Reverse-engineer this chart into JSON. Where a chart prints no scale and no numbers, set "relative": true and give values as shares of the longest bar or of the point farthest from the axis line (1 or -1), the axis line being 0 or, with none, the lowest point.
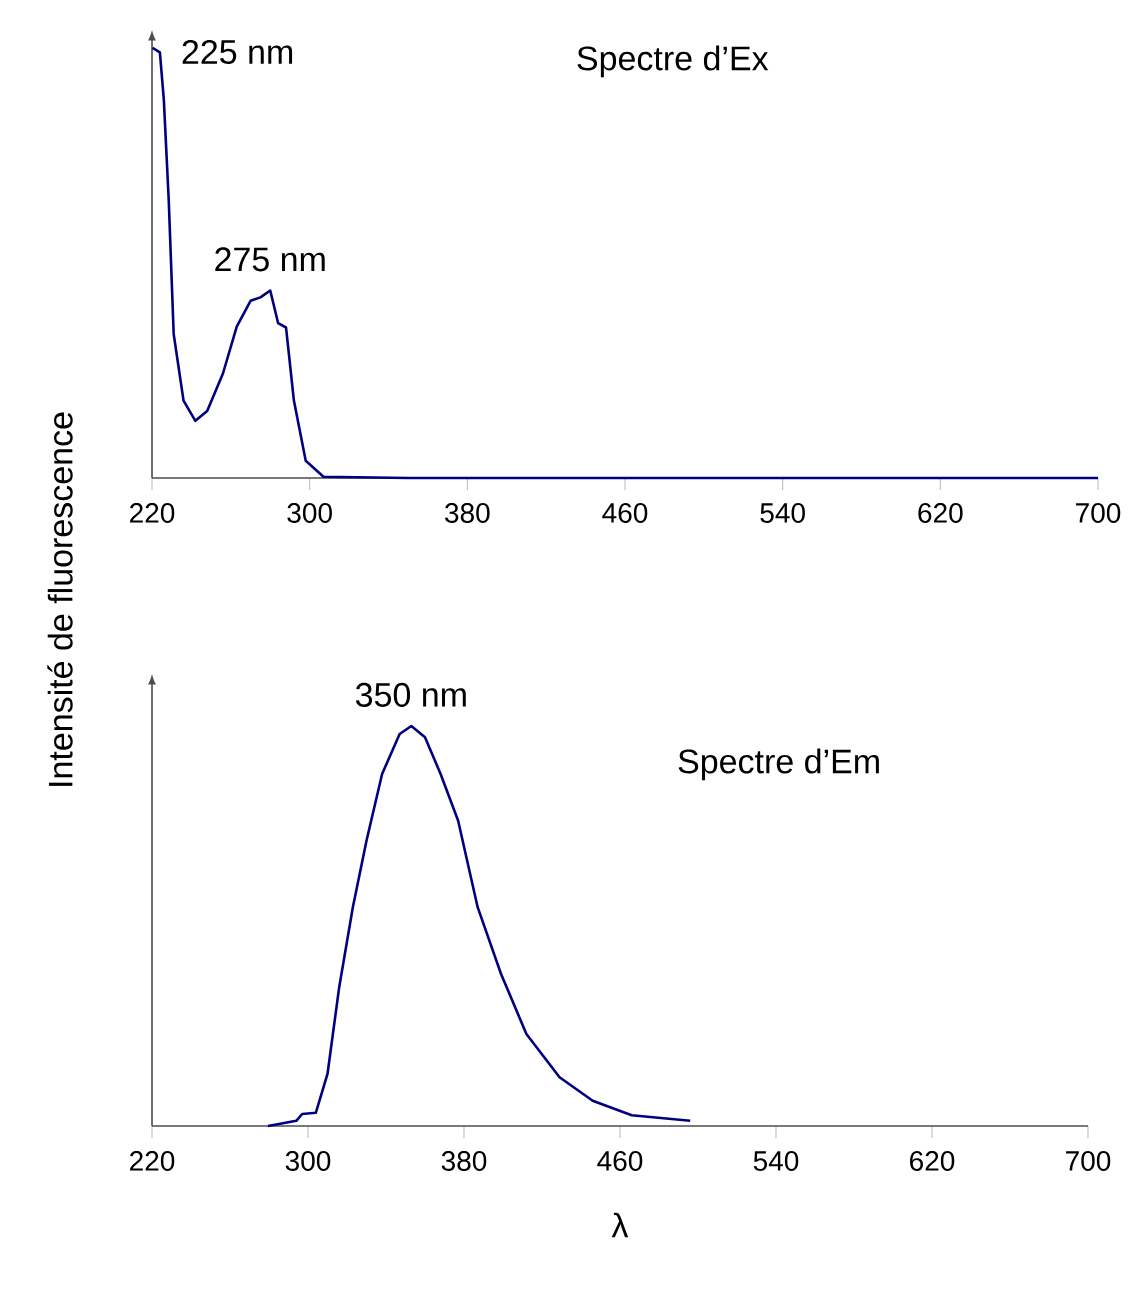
{
  "chart_data": [
    {
      "type": "line",
      "title": "Spectre d’Ex",
      "ylabel": "Intensité de fluorescence",
      "relative": true,
      "color": "#000080",
      "xlim": [
        220,
        700
      ],
      "xticks": [
        220,
        300,
        380,
        460,
        540,
        620,
        700
      ],
      "x": [
        220.3,
        224,
        226,
        228.5,
        231,
        236,
        242,
        248,
        256,
        263,
        270,
        275,
        280,
        284,
        288,
        292,
        298,
        307,
        350,
        400,
        450,
        500,
        550,
        600,
        650,
        700
      ],
      "values": [
        1.0,
        0.99,
        0.88,
        0.645,
        0.335,
        0.18,
        0.133,
        0.156,
        0.243,
        0.352,
        0.412,
        0.42,
        0.436,
        0.36,
        0.35,
        0.18,
        0.04,
        0.003,
        0,
        0,
        0,
        0,
        0,
        0,
        0,
        0
      ],
      "annotations": [
        {
          "text": "225 nm",
          "x": 225,
          "y": 1.0
        },
        {
          "text": "275 nm",
          "x": 280,
          "y": 0.436
        }
      ]
    },
    {
      "type": "line",
      "title": "Spectre d’Em",
      "xlabel": "λ",
      "relative": true,
      "color": "#000080",
      "xlim": [
        220,
        700
      ],
      "xticks": [
        220,
        300,
        380,
        460,
        540,
        620,
        700
      ],
      "x": [
        279.5,
        294,
        297,
        304,
        310,
        316,
        323,
        330,
        338,
        347,
        353,
        360,
        368,
        377,
        387,
        399,
        412,
        429,
        446,
        466,
        496
      ],
      "values": [
        0,
        0.013,
        0.03,
        0.033,
        0.13,
        0.347,
        0.547,
        0.713,
        0.88,
        0.98,
        1.0,
        0.972,
        0.88,
        0.763,
        0.547,
        0.38,
        0.23,
        0.122,
        0.063,
        0.027,
        0.013
      ],
      "annotations": [
        {
          "text": "350 nm",
          "x": 353,
          "y": 1.0
        }
      ]
    }
  ]
}
